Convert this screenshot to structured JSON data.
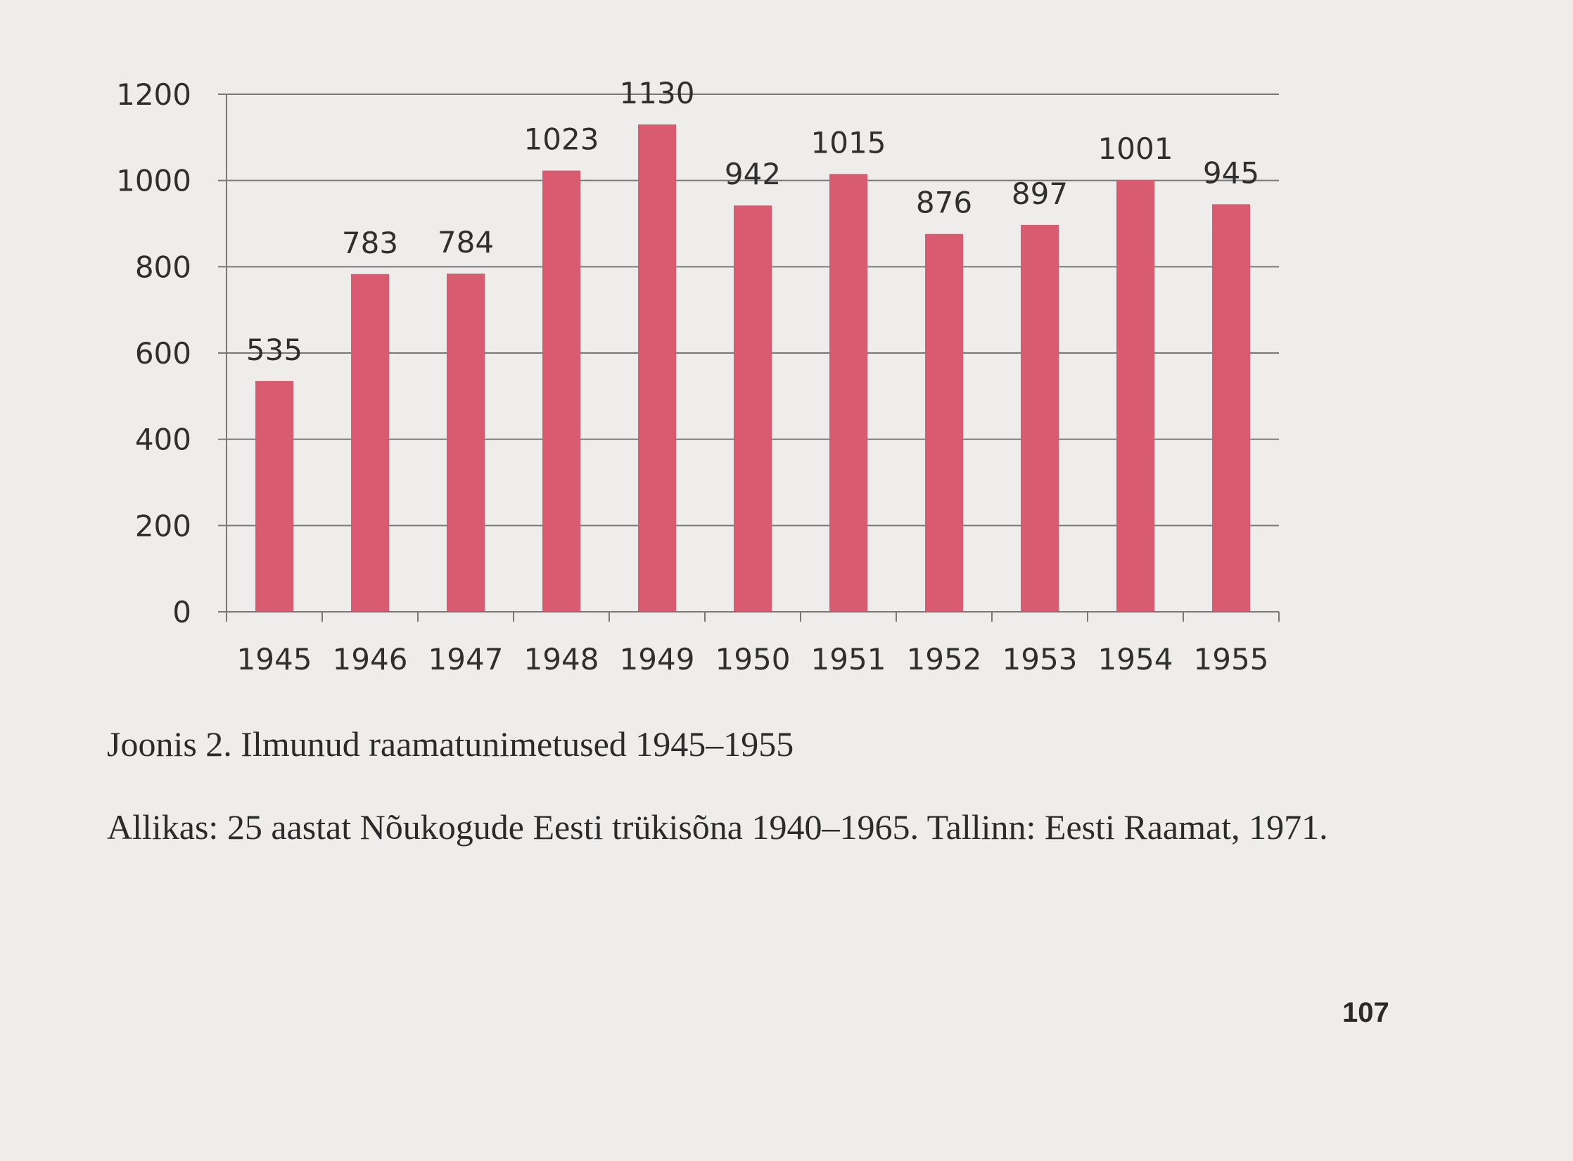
{
  "chart_data": {
    "type": "bar",
    "categories": [
      "1945",
      "1946",
      "1947",
      "1948",
      "1949",
      "1950",
      "1951",
      "1952",
      "1953",
      "1954",
      "1955"
    ],
    "values": [
      535,
      783,
      784,
      1023,
      1130,
      942,
      1015,
      876,
      897,
      1001,
      945
    ],
    "ylim": [
      0,
      1200
    ],
    "yticks": [
      0,
      200,
      400,
      600,
      800,
      1000,
      1200
    ],
    "grid": true,
    "bar_color": "#d95b70",
    "legend": "none"
  },
  "caption": "Joonis 2. Ilmunud raamatunimetused 1945–1955",
  "source": "Allikas: 25 aastat Nõukogude Eesti trükisõna 1940–1965. Tallinn: Eesti Raamat, 1971.",
  "page_number": "107"
}
